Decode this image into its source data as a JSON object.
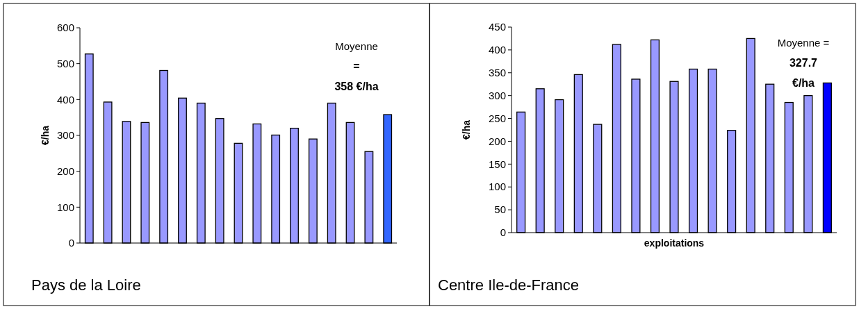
{
  "chart_data": [
    {
      "type": "bar",
      "title": "Pays de la Loire",
      "ylabel": "€/ha",
      "categories": [
        null,
        null,
        null,
        null,
        null,
        null,
        null,
        null,
        null,
        null,
        null,
        null,
        null,
        null,
        null,
        null,
        null
      ],
      "values": [
        527,
        393,
        339,
        336,
        481,
        404,
        390,
        347,
        278,
        332,
        301,
        320,
        290,
        390,
        336,
        255,
        358
      ],
      "colors": [
        "#9999ff",
        "#9999ff",
        "#9999ff",
        "#9999ff",
        "#9999ff",
        "#9999ff",
        "#9999ff",
        "#9999ff",
        "#9999ff",
        "#9999ff",
        "#9999ff",
        "#9999ff",
        "#9999ff",
        "#9999ff",
        "#9999ff",
        "#9999ff",
        "#3366ff"
      ],
      "ylim": [
        0,
        600
      ],
      "yticks": [
        0,
        100,
        200,
        300,
        400,
        500,
        600
      ],
      "grid": false,
      "annotations": [
        "Moyenne",
        "=",
        "358 €/ha"
      ]
    },
    {
      "type": "bar",
      "title": "Centre Ile-de-France",
      "ylabel": "€/ha",
      "xlabel": "exploitations",
      "categories": [
        null,
        null,
        null,
        null,
        null,
        null,
        null,
        null,
        null,
        null,
        null,
        null,
        null,
        null,
        null,
        null,
        null
      ],
      "values": [
        264,
        315,
        291,
        346,
        237,
        412,
        336,
        422,
        331,
        358,
        358,
        224,
        425,
        325,
        285,
        300,
        327.7
      ],
      "colors": [
        "#9999ff",
        "#9999ff",
        "#9999ff",
        "#9999ff",
        "#9999ff",
        "#9999ff",
        "#9999ff",
        "#9999ff",
        "#9999ff",
        "#9999ff",
        "#9999ff",
        "#9999ff",
        "#9999ff",
        "#9999ff",
        "#9999ff",
        "#9999ff",
        "#0000ff"
      ],
      "ylim": [
        0,
        450
      ],
      "yticks": [
        0,
        50,
        100,
        150,
        200,
        250,
        300,
        350,
        400,
        450
      ],
      "grid": false,
      "annotations": [
        "Moyenne =",
        "327.7",
        "€/ha"
      ]
    }
  ]
}
